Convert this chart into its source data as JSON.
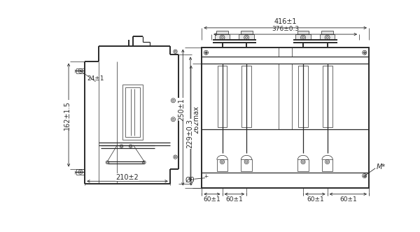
{
  "line_color": "#2a2a2a",
  "dim_color": "#2a2a2a",
  "lw_main": 0.9,
  "lw_thin": 0.5,
  "lw_thick": 1.4,
  "font_size": 7.0,
  "annotations": {
    "dim_162": "162±1.5",
    "dim_24": "24±1",
    "dim_210": "210±2",
    "dim_262": "262max",
    "dim_250": "250±1",
    "dim_229": "229±0.3",
    "dim_416": "416±1",
    "dim_376": "376±0.3",
    "dim_60a": "60±1",
    "dim_60b": "60±1",
    "dim_60c": "60±1",
    "dim_60d": "60±1",
    "dim_phi9": "Ø9",
    "dim_M": "M*"
  }
}
